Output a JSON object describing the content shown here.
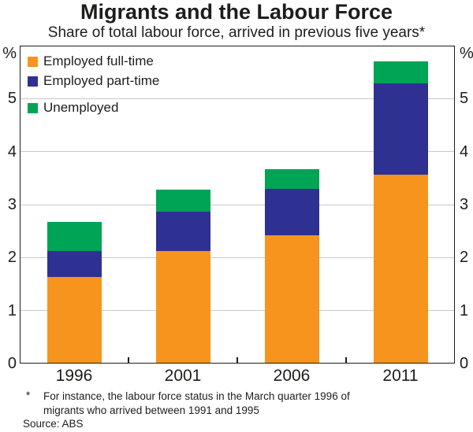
{
  "chart_data": {
    "type": "bar",
    "stacked": true,
    "title": "Migrants and the Labour Force",
    "subtitle": "Share of total labour force, arrived in previous five years*",
    "categories": [
      "1996",
      "2001",
      "2006",
      "2011"
    ],
    "series": [
      {
        "name": "Employed full-time",
        "color": "#F7941E",
        "values": [
          1.64,
          2.12,
          2.42,
          3.56
        ]
      },
      {
        "name": "Employed part-time",
        "color": "#2E3192",
        "values": [
          0.49,
          0.75,
          0.88,
          1.73
        ]
      },
      {
        "name": "Unemployed",
        "color": "#00A455",
        "values": [
          0.54,
          0.42,
          0.37,
          0.42
        ]
      }
    ],
    "stack_totals": [
      2.67,
      3.29,
      3.67,
      5.71
    ],
    "axis_unit_label": "%",
    "ylim": [
      0,
      6
    ],
    "yticks": [
      0,
      1,
      2,
      3,
      4,
      5
    ],
    "grid": true,
    "grid_color": "#C9C9C9",
    "frame_color": "#1D1D1B",
    "legend_position": "top-left"
  },
  "footnote": {
    "marker": "*",
    "lines": [
      "For instance, the labour force status in the March quarter 1996 of",
      "migrants who arrived between 1991 and 1995"
    ],
    "source": "Source: ABS"
  }
}
